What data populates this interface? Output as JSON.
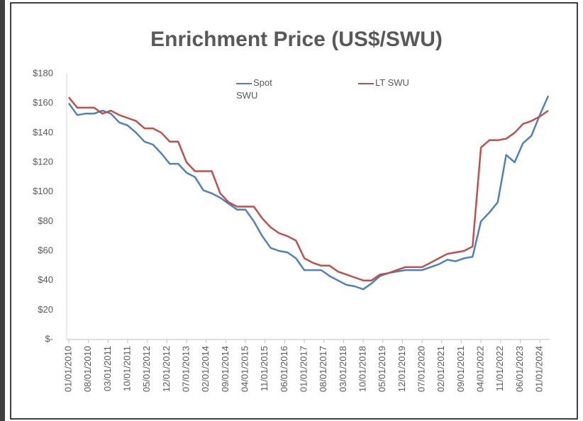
{
  "chart_data": {
    "type": "line",
    "title": "Enrichment Price (US$/SWU)",
    "x": [
      "01/01/2010",
      "04/01/2010",
      "07/01/2010",
      "10/01/2010",
      "01/01/2011",
      "04/01/2011",
      "07/01/2011",
      "10/01/2011",
      "01/01/2012",
      "04/01/2012",
      "07/01/2012",
      "10/01/2012",
      "01/01/2013",
      "04/01/2013",
      "07/01/2013",
      "10/01/2013",
      "01/01/2014",
      "04/01/2014",
      "07/01/2014",
      "10/01/2014",
      "01/01/2015",
      "04/01/2015",
      "07/01/2015",
      "10/01/2015",
      "01/01/2016",
      "04/01/2016",
      "07/01/2016",
      "10/01/2016",
      "01/01/2017",
      "04/01/2017",
      "07/01/2017",
      "10/01/2017",
      "01/01/2018",
      "04/01/2018",
      "07/01/2018",
      "10/01/2018",
      "01/01/2019",
      "04/01/2019",
      "07/01/2019",
      "10/01/2019",
      "01/01/2020",
      "04/01/2020",
      "07/01/2020",
      "10/01/2020",
      "01/01/2021",
      "04/01/2021",
      "07/01/2021",
      "10/01/2021",
      "01/01/2022",
      "04/01/2022",
      "07/01/2022",
      "10/01/2022",
      "01/01/2023",
      "04/01/2023",
      "07/01/2023",
      "10/01/2023",
      "01/01/2024",
      "04/01/2024"
    ],
    "series": [
      {
        "name": "Spot SWU",
        "color": "#4f81bd",
        "values": [
          160,
          152,
          153,
          153,
          155,
          153,
          147,
          145,
          140,
          134,
          132,
          126,
          119,
          119,
          113,
          110,
          101,
          99,
          96,
          92,
          88,
          88,
          80,
          70,
          62,
          60,
          59,
          55,
          47,
          47,
          47,
          43,
          40,
          37,
          36,
          34,
          38,
          43,
          45,
          46,
          47,
          47,
          47,
          49,
          51,
          54,
          53,
          55,
          56,
          80,
          86,
          93,
          125,
          120,
          133,
          138,
          152,
          165
        ]
      },
      {
        "name": "LT SWU",
        "color": "#c0504d",
        "values": [
          164,
          157,
          157,
          157,
          153,
          155,
          152,
          150,
          148,
          143,
          143,
          140,
          134,
          134,
          120,
          114,
          114,
          114,
          99,
          93,
          90,
          90,
          90,
          82,
          76,
          72,
          70,
          67,
          55,
          52,
          50,
          50,
          46,
          44,
          42,
          40,
          40,
          44,
          45,
          47,
          49,
          49,
          49,
          52,
          55,
          58,
          59,
          60,
          63,
          130,
          135,
          135,
          136,
          140,
          146,
          148,
          151,
          155
        ]
      }
    ],
    "xlim": [
      "01/01/2010",
      "04/01/2024"
    ],
    "xticks": [
      "01/01/2010",
      "08/01/2010",
      "03/01/2011",
      "10/01/2011",
      "05/01/2012",
      "12/01/2012",
      "07/01/2013",
      "02/01/2014",
      "09/01/2014",
      "04/01/2015",
      "11/01/2015",
      "06/01/2016",
      "01/01/2017",
      "08/01/2017",
      "03/01/2018",
      "10/01/2018",
      "05/01/2019",
      "12/01/2019",
      "07/01/2020",
      "02/01/2021",
      "09/01/2021",
      "04/01/2022",
      "11/01/2022",
      "06/01/2023",
      "01/01/2024"
    ],
    "ylim": [
      0,
      180
    ],
    "yticks": [
      {
        "value": 0,
        "label": "$-"
      },
      {
        "value": 20,
        "label": "$20"
      },
      {
        "value": 40,
        "label": "$40"
      },
      {
        "value": 60,
        "label": "$60"
      },
      {
        "value": 80,
        "label": "$80"
      },
      {
        "value": 100,
        "label": "$100"
      },
      {
        "value": 120,
        "label": "$120"
      },
      {
        "value": 140,
        "label": "$140"
      },
      {
        "value": 160,
        "label": "$160"
      },
      {
        "value": 180,
        "label": "$180"
      }
    ]
  }
}
